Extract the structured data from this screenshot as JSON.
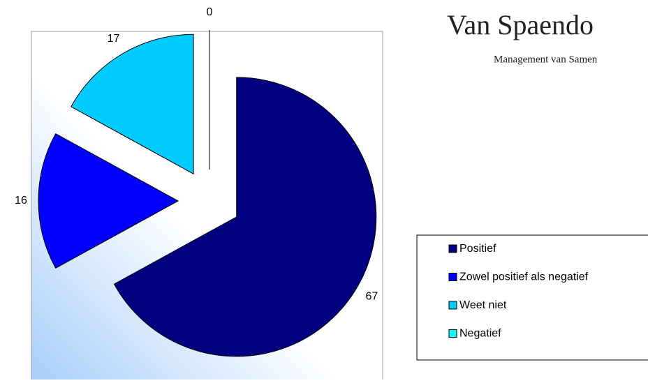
{
  "chart_data": {
    "type": "pie",
    "title": "Van Spaendo",
    "subtitle": "Management van Samen",
    "categories": [
      "Positief",
      "Zowel positief als negatief",
      "Weet niet",
      "Negatief"
    ],
    "values": [
      67,
      16,
      17,
      0
    ],
    "colors": [
      "#000080",
      "#0000ff",
      "#00ccff",
      "#00ffff"
    ],
    "legend": "right"
  }
}
